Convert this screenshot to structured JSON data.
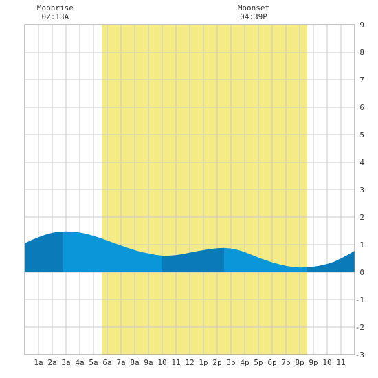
{
  "chart_data": {
    "type": "area",
    "x_unit": "hour of day",
    "ylim": [
      -3,
      9
    ],
    "y_ticks": [
      9,
      8,
      7,
      6,
      5,
      4,
      3,
      2,
      1,
      0,
      -1,
      -2,
      -3
    ],
    "x_tick_labels": [
      {
        "hour": 1,
        "label": "1a"
      },
      {
        "hour": 2,
        "label": "2a"
      },
      {
        "hour": 3,
        "label": "3a"
      },
      {
        "hour": 4,
        "label": "4a"
      },
      {
        "hour": 5,
        "label": "5a"
      },
      {
        "hour": 6,
        "label": "6a"
      },
      {
        "hour": 7,
        "label": "7a"
      },
      {
        "hour": 8,
        "label": "8a"
      },
      {
        "hour": 9,
        "label": "9a"
      },
      {
        "hour": 10,
        "label": "10"
      },
      {
        "hour": 11,
        "label": "11"
      },
      {
        "hour": 12,
        "label": "12"
      },
      {
        "hour": 13,
        "label": "1p"
      },
      {
        "hour": 14,
        "label": "2p"
      },
      {
        "hour": 15,
        "label": "3p"
      },
      {
        "hour": 16,
        "label": "4p"
      },
      {
        "hour": 17,
        "label": "5p"
      },
      {
        "hour": 18,
        "label": "6p"
      },
      {
        "hour": 19,
        "label": "7p"
      },
      {
        "hour": 20,
        "label": "8p"
      },
      {
        "hour": 21,
        "label": "9p"
      },
      {
        "hour": 22,
        "label": "10"
      },
      {
        "hour": 23,
        "label": "11"
      }
    ],
    "x_range": [
      0,
      24
    ],
    "grid": true,
    "daylight": {
      "start_hour": 5.62,
      "end_hour": 20.55,
      "color": "#f5eb86"
    },
    "tide_extremes": [
      {
        "hour": 2.8,
        "height": 1.48
      },
      {
        "hour": 10.0,
        "height": 0.6
      },
      {
        "hour": 14.5,
        "height": 0.88
      },
      {
        "hour": 20.5,
        "height": 0.18
      }
    ],
    "tide_series": {
      "x": [
        0,
        0.5,
        1,
        1.5,
        2,
        2.5,
        3,
        3.5,
        4,
        4.5,
        5,
        5.5,
        6,
        6.5,
        7,
        7.5,
        8,
        8.5,
        9,
        9.5,
        10,
        10.5,
        11,
        11.5,
        12,
        12.5,
        13,
        13.5,
        14,
        14.5,
        15,
        15.5,
        16,
        16.5,
        17,
        17.5,
        18,
        18.5,
        19,
        19.5,
        20,
        20.5,
        21,
        21.5,
        22,
        22.5,
        23,
        23.5,
        24
      ],
      "y": [
        1.05,
        1.17,
        1.27,
        1.36,
        1.43,
        1.47,
        1.48,
        1.47,
        1.44,
        1.39,
        1.32,
        1.24,
        1.15,
        1.06,
        0.97,
        0.88,
        0.8,
        0.73,
        0.68,
        0.63,
        0.6,
        0.6,
        0.62,
        0.66,
        0.71,
        0.76,
        0.8,
        0.84,
        0.87,
        0.88,
        0.86,
        0.81,
        0.73,
        0.63,
        0.53,
        0.44,
        0.36,
        0.29,
        0.23,
        0.19,
        0.17,
        0.18,
        0.2,
        0.24,
        0.3,
        0.38,
        0.5,
        0.63,
        0.78
      ]
    },
    "tide_band_breaks": [
      2.8,
      10.0,
      14.5,
      20.5
    ],
    "colors": {
      "tide_light": "#0a96d8",
      "tide_dark": "#0a7ab8",
      "grid": "#c8c8c8",
      "frame": "#888888",
      "background": "#ffffff"
    },
    "moonrise": {
      "label": "Moonrise",
      "time": "02:13A",
      "hour": 2.22
    },
    "moonset": {
      "label": "Moonset",
      "time": "04:39P",
      "hour": 16.65
    }
  }
}
